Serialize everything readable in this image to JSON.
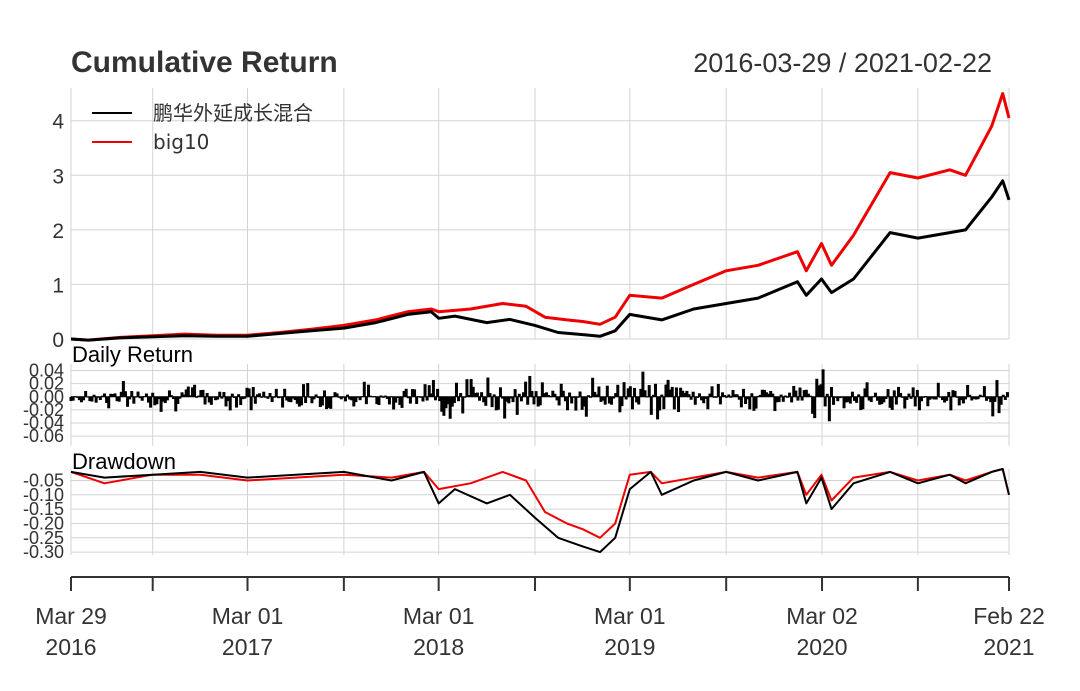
{
  "colors": {
    "fund": "#000000",
    "benchmark": "#ee0000",
    "grid": "#d3d3d3",
    "text": "#333333"
  },
  "chart_data": {
    "type": "line",
    "title": "Cumulative Return",
    "date_range": "2016-03-29 / 2021-02-22",
    "x_range": [
      "2016-03-29",
      "2021-02-22"
    ],
    "legend": {
      "placement": "top-left",
      "entries": [
        "鹏华外延成长混合",
        "big10"
      ]
    },
    "x_axis": {
      "ticks": [
        {
          "date": "2016-03-29",
          "line1": "Mar 29",
          "line2": "2016"
        },
        {
          "date": "2017-03-01",
          "line1": "Mar 01",
          "line2": "2017"
        },
        {
          "date": "2018-03-01",
          "line1": "Mar 01",
          "line2": "2018"
        },
        {
          "date": "2019-03-01",
          "line1": "Mar 01",
          "line2": "2019"
        },
        {
          "date": "2020-03-02",
          "line1": "Mar 02",
          "line2": "2020"
        },
        {
          "date": "2021-02-22",
          "line1": "Feb 22",
          "line2": "2021"
        }
      ]
    },
    "panels": [
      {
        "id": "cumulative",
        "label": "",
        "ylim": [
          0,
          4.6
        ],
        "y_ticks": [
          "0",
          "1",
          "2",
          "3",
          "4"
        ],
        "grid": true,
        "series": [
          {
            "name": "鹏华外延成长混合",
            "color": "#000000",
            "points": [
              [
                "2016-03-29",
                0.0
              ],
              [
                "2016-05-01",
                -0.02
              ],
              [
                "2016-07-01",
                0.02
              ],
              [
                "2016-09-01",
                0.04
              ],
              [
                "2016-11-01",
                0.06
              ],
              [
                "2017-01-01",
                0.05
              ],
              [
                "2017-03-01",
                0.05
              ],
              [
                "2017-05-01",
                0.1
              ],
              [
                "2017-07-01",
                0.15
              ],
              [
                "2017-09-01",
                0.2
              ],
              [
                "2017-11-01",
                0.3
              ],
              [
                "2018-01-01",
                0.45
              ],
              [
                "2018-02-15",
                0.5
              ],
              [
                "2018-03-01",
                0.38
              ],
              [
                "2018-04-01",
                0.42
              ],
              [
                "2018-06-01",
                0.3
              ],
              [
                "2018-07-15",
                0.36
              ],
              [
                "2018-09-01",
                0.25
              ],
              [
                "2018-10-15",
                0.12
              ],
              [
                "2018-12-01",
                0.08
              ],
              [
                "2019-01-03",
                0.05
              ],
              [
                "2019-02-01",
                0.15
              ],
              [
                "2019-03-01",
                0.45
              ],
              [
                "2019-05-01",
                0.35
              ],
              [
                "2019-07-01",
                0.55
              ],
              [
                "2019-09-01",
                0.65
              ],
              [
                "2019-11-01",
                0.75
              ],
              [
                "2020-01-15",
                1.05
              ],
              [
                "2020-02-01",
                0.8
              ],
              [
                "2020-03-01",
                1.1
              ],
              [
                "2020-03-20",
                0.85
              ],
              [
                "2020-05-01",
                1.1
              ],
              [
                "2020-07-10",
                1.95
              ],
              [
                "2020-09-01",
                1.85
              ],
              [
                "2020-11-01",
                1.95
              ],
              [
                "2020-12-01",
                2.0
              ],
              [
                "2021-01-20",
                2.6
              ],
              [
                "2021-02-10",
                2.9
              ],
              [
                "2021-02-22",
                2.55
              ]
            ]
          },
          {
            "name": "big10",
            "color": "#ee0000",
            "points": [
              [
                "2016-03-29",
                0.0
              ],
              [
                "2016-05-01",
                -0.02
              ],
              [
                "2016-07-01",
                0.03
              ],
              [
                "2016-09-01",
                0.06
              ],
              [
                "2016-11-01",
                0.09
              ],
              [
                "2017-01-01",
                0.07
              ],
              [
                "2017-03-01",
                0.07
              ],
              [
                "2017-05-01",
                0.12
              ],
              [
                "2017-07-01",
                0.18
              ],
              [
                "2017-09-01",
                0.25
              ],
              [
                "2017-11-01",
                0.35
              ],
              [
                "2018-01-01",
                0.5
              ],
              [
                "2018-02-15",
                0.55
              ],
              [
                "2018-03-01",
                0.5
              ],
              [
                "2018-05-01",
                0.55
              ],
              [
                "2018-07-01",
                0.65
              ],
              [
                "2018-08-15",
                0.6
              ],
              [
                "2018-09-20",
                0.4
              ],
              [
                "2018-11-01",
                0.35
              ],
              [
                "2018-12-01",
                0.32
              ],
              [
                "2019-01-03",
                0.27
              ],
              [
                "2019-02-01",
                0.4
              ],
              [
                "2019-03-01",
                0.8
              ],
              [
                "2019-05-01",
                0.75
              ],
              [
                "2019-07-01",
                1.0
              ],
              [
                "2019-09-01",
                1.25
              ],
              [
                "2019-11-01",
                1.35
              ],
              [
                "2020-01-15",
                1.6
              ],
              [
                "2020-02-01",
                1.25
              ],
              [
                "2020-03-01",
                1.75
              ],
              [
                "2020-03-20",
                1.35
              ],
              [
                "2020-05-01",
                1.9
              ],
              [
                "2020-07-10",
                3.05
              ],
              [
                "2020-09-01",
                2.95
              ],
              [
                "2020-11-01",
                3.1
              ],
              [
                "2020-12-01",
                3.0
              ],
              [
                "2021-01-20",
                3.9
              ],
              [
                "2021-02-10",
                4.5
              ],
              [
                "2021-02-22",
                4.05
              ]
            ]
          }
        ]
      },
      {
        "id": "daily",
        "label": "Daily Return",
        "ylim": [
          -0.075,
          0.05
        ],
        "y_ticks": [
          "0.04",
          "0.02",
          "0.00",
          "-0.02",
          "-0.04",
          "-0.06"
        ],
        "y_tick_values": [
          0.04,
          0.02,
          0.0,
          -0.02,
          -0.04,
          -0.06
        ],
        "grid": true,
        "series": [
          {
            "name": "鹏华外延成长混合",
            "type": "bar",
            "color": "#000000",
            "amplitude": 0.012
          }
        ]
      },
      {
        "id": "drawdown",
        "label": "Drawdown",
        "ylim": [
          -0.31,
          -0.01
        ],
        "y_ticks": [
          "-0.05",
          "-0.10",
          "-0.15",
          "-0.20",
          "-0.25",
          "-0.30"
        ],
        "y_tick_values": [
          -0.05,
          -0.1,
          -0.15,
          -0.2,
          -0.25,
          -0.3
        ],
        "grid": true,
        "series": [
          {
            "name": "鹏华外延成长混合",
            "color": "#000000",
            "points": [
              [
                "2016-03-29",
                -0.02
              ],
              [
                "2016-06-01",
                -0.04
              ],
              [
                "2016-09-01",
                -0.03
              ],
              [
                "2016-12-01",
                -0.02
              ],
              [
                "2017-03-01",
                -0.04
              ],
              [
                "2017-06-01",
                -0.03
              ],
              [
                "2017-09-01",
                -0.02
              ],
              [
                "2017-12-01",
                -0.05
              ],
              [
                "2018-02-01",
                -0.02
              ],
              [
                "2018-03-01",
                -0.13
              ],
              [
                "2018-04-01",
                -0.08
              ],
              [
                "2018-06-01",
                -0.13
              ],
              [
                "2018-07-15",
                -0.1
              ],
              [
                "2018-09-01",
                -0.18
              ],
              [
                "2018-10-15",
                -0.25
              ],
              [
                "2018-12-01",
                -0.28
              ],
              [
                "2019-01-03",
                -0.3
              ],
              [
                "2019-02-01",
                -0.25
              ],
              [
                "2019-03-01",
                -0.08
              ],
              [
                "2019-04-10",
                -0.02
              ],
              [
                "2019-05-01",
                -0.1
              ],
              [
                "2019-07-01",
                -0.05
              ],
              [
                "2019-09-01",
                -0.02
              ],
              [
                "2019-11-01",
                -0.05
              ],
              [
                "2020-01-15",
                -0.02
              ],
              [
                "2020-02-01",
                -0.13
              ],
              [
                "2020-03-01",
                -0.04
              ],
              [
                "2020-03-20",
                -0.15
              ],
              [
                "2020-05-01",
                -0.06
              ],
              [
                "2020-07-10",
                -0.02
              ],
              [
                "2020-09-01",
                -0.06
              ],
              [
                "2020-11-01",
                -0.03
              ],
              [
                "2020-12-01",
                -0.06
              ],
              [
                "2021-01-20",
                -0.02
              ],
              [
                "2021-02-10",
                -0.01
              ],
              [
                "2021-02-22",
                -0.1
              ]
            ]
          },
          {
            "name": "big10",
            "color": "#ee0000",
            "points": [
              [
                "2016-03-29",
                -0.02
              ],
              [
                "2016-06-01",
                -0.06
              ],
              [
                "2016-09-01",
                -0.03
              ],
              [
                "2016-12-01",
                -0.03
              ],
              [
                "2017-03-01",
                -0.05
              ],
              [
                "2017-06-01",
                -0.04
              ],
              [
                "2017-09-01",
                -0.03
              ],
              [
                "2017-12-01",
                -0.04
              ],
              [
                "2018-02-01",
                -0.02
              ],
              [
                "2018-03-01",
                -0.08
              ],
              [
                "2018-05-01",
                -0.06
              ],
              [
                "2018-07-01",
                -0.02
              ],
              [
                "2018-08-15",
                -0.05
              ],
              [
                "2018-09-20",
                -0.16
              ],
              [
                "2018-11-01",
                -0.2
              ],
              [
                "2018-12-01",
                -0.22
              ],
              [
                "2019-01-03",
                -0.25
              ],
              [
                "2019-02-01",
                -0.2
              ],
              [
                "2019-03-01",
                -0.03
              ],
              [
                "2019-04-10",
                -0.02
              ],
              [
                "2019-05-01",
                -0.06
              ],
              [
                "2019-07-01",
                -0.04
              ],
              [
                "2019-09-01",
                -0.02
              ],
              [
                "2019-11-01",
                -0.04
              ],
              [
                "2020-01-15",
                -0.02
              ],
              [
                "2020-02-01",
                -0.1
              ],
              [
                "2020-03-01",
                -0.03
              ],
              [
                "2020-03-20",
                -0.12
              ],
              [
                "2020-05-01",
                -0.04
              ],
              [
                "2020-07-10",
                -0.02
              ],
              [
                "2020-09-01",
                -0.05
              ],
              [
                "2020-11-01",
                -0.03
              ],
              [
                "2020-12-01",
                -0.05
              ],
              [
                "2021-01-20",
                -0.02
              ],
              [
                "2021-02-10",
                -0.01
              ],
              [
                "2021-02-22",
                -0.1
              ]
            ]
          }
        ]
      }
    ]
  }
}
